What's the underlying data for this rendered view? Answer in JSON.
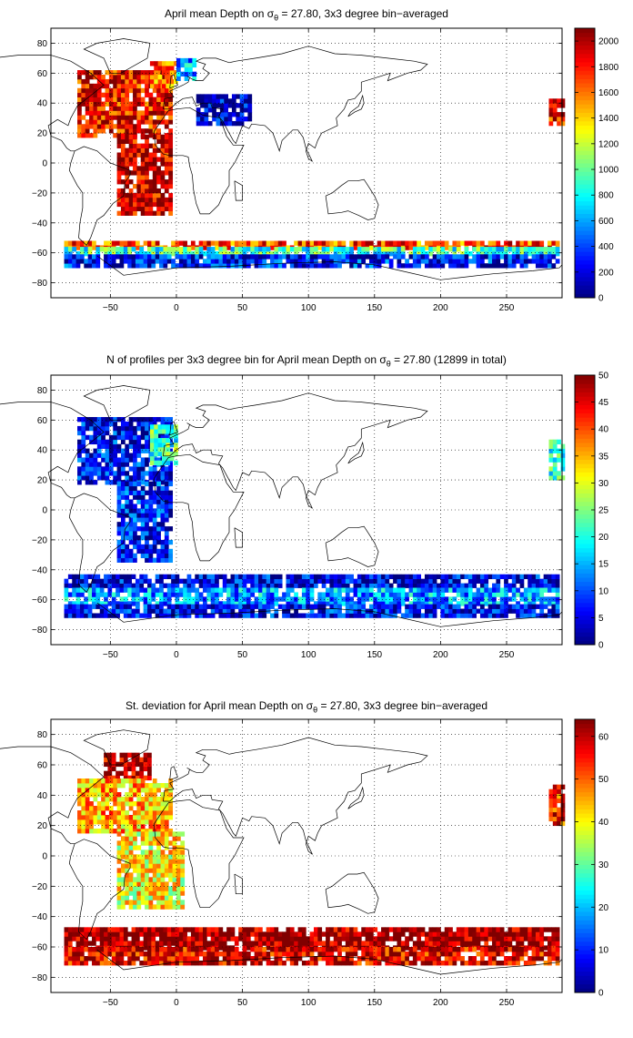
{
  "page": {
    "background": "#ffffff"
  },
  "chart_data": [
    {
      "type": "heatmap",
      "title": {
        "before": "April mean Depth on σ",
        "sub": "θ",
        "after": " = 27.80, 3x3 degree bin−averaged"
      },
      "xlim": [
        -95,
        292
      ],
      "ylim": [
        -90,
        90
      ],
      "xticks": [
        -50,
        0,
        50,
        100,
        150,
        200,
        250
      ],
      "yticks": [
        -80,
        -60,
        -40,
        -20,
        0,
        20,
        40,
        60,
        80
      ],
      "grid": true,
      "colorbar": {
        "min": 0,
        "max": 2100,
        "ticks": [
          0,
          200,
          400,
          600,
          800,
          1000,
          1200,
          1400,
          1600,
          1800,
          2000
        ],
        "colormap": "jet"
      },
      "regions": [
        {
          "lon": [
            -75,
            -5
          ],
          "lat": [
            17,
            60
          ],
          "value": 1850
        },
        {
          "lon": [
            -45,
            -5
          ],
          "lat": [
            -35,
            17
          ],
          "value": 1950
        },
        {
          "lon": [
            -20,
            0
          ],
          "lat": [
            50,
            66
          ],
          "value": 1600
        },
        {
          "lon": [
            0,
            15
          ],
          "lat": [
            55,
            68
          ],
          "value": 600
        },
        {
          "lon": [
            15,
            55
          ],
          "lat": [
            25,
            45
          ],
          "value": 150
        },
        {
          "lon": [
            -85,
            290
          ],
          "lat": [
            -58,
            -52
          ],
          "value": 1700
        },
        {
          "lon": [
            -85,
            290
          ],
          "lat": [
            -62,
            -58
          ],
          "value": 900
        },
        {
          "lon": [
            -85,
            290
          ],
          "lat": [
            -70,
            -62
          ],
          "value": 300
        },
        {
          "lon": [
            282,
            292
          ],
          "lat": [
            25,
            42
          ],
          "value": 1850
        }
      ]
    },
    {
      "type": "heatmap",
      "title": {
        "before": "N of profiles per 3x3 degree bin for April mean Depth on σ",
        "sub": "θ",
        "after": " = 27.80 (12899 in total)"
      },
      "xlim": [
        -95,
        292
      ],
      "ylim": [
        -90,
        90
      ],
      "xticks": [
        -50,
        0,
        50,
        100,
        150,
        200,
        250
      ],
      "yticks": [
        -80,
        -60,
        -40,
        -20,
        0,
        20,
        40,
        60,
        80
      ],
      "grid": true,
      "colorbar": {
        "min": 0,
        "max": 50,
        "ticks": [
          0,
          5,
          10,
          15,
          20,
          25,
          30,
          35,
          40,
          45,
          50
        ],
        "colormap": "jet"
      },
      "regions": [
        {
          "lon": [
            -75,
            -5
          ],
          "lat": [
            17,
            60
          ],
          "value": 6
        },
        {
          "lon": [
            -45,
            -5
          ],
          "lat": [
            -35,
            17
          ],
          "value": 7
        },
        {
          "lon": [
            -20,
            0
          ],
          "lat": [
            30,
            55
          ],
          "value": 22
        },
        {
          "lon": [
            -85,
            290
          ],
          "lat": [
            -52,
            -45
          ],
          "value": 5
        },
        {
          "lon": [
            -85,
            290
          ],
          "lat": [
            -64,
            -52
          ],
          "value": 14
        },
        {
          "lon": [
            -85,
            290
          ],
          "lat": [
            -72,
            -64
          ],
          "value": 6
        },
        {
          "lon": [
            282,
            292
          ],
          "lat": [
            20,
            45
          ],
          "value": 20
        }
      ]
    },
    {
      "type": "heatmap",
      "title": {
        "before": "St. deviation for April mean Depth on σ",
        "sub": "θ",
        "after": " = 27.80, 3x3 degree bin−averaged"
      },
      "xlim": [
        -95,
        292
      ],
      "ylim": [
        -90,
        90
      ],
      "xticks": [
        -50,
        0,
        50,
        100,
        150,
        200,
        250
      ],
      "yticks": [
        -80,
        -60,
        -40,
        -20,
        0,
        20,
        40,
        60,
        80
      ],
      "grid": true,
      "colorbar": {
        "min": 0,
        "max": 64,
        "ticks": [
          0,
          10,
          20,
          30,
          40,
          50,
          60
        ],
        "colormap": "jet"
      },
      "regions": [
        {
          "lon": [
            -55,
            -20
          ],
          "lat": [
            50,
            68
          ],
          "value": 62
        },
        {
          "lon": [
            -75,
            -5
          ],
          "lat": [
            15,
            50
          ],
          "value": 45
        },
        {
          "lon": [
            -45,
            5
          ],
          "lat": [
            -35,
            15
          ],
          "value": 40
        },
        {
          "lon": [
            -85,
            290
          ],
          "lat": [
            -62,
            -48
          ],
          "value": 63
        },
        {
          "lon": [
            -85,
            290
          ],
          "lat": [
            -72,
            -62
          ],
          "value": 58
        },
        {
          "lon": [
            282,
            292
          ],
          "lat": [
            20,
            45
          ],
          "value": 55
        }
      ]
    }
  ]
}
